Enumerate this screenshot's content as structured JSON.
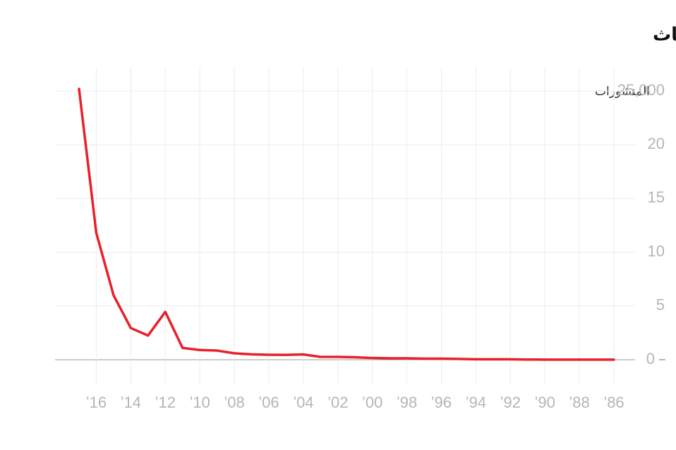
{
  "chart_data": {
    "type": "line",
    "title": "التزايد الكبير في انتشار مصطلح \"التعلم العميق\" في الأبحاث",
    "y_label": "المنشورات",
    "categories": [
      null,
      "’16",
      null,
      "’14",
      null,
      "’12",
      null,
      "’10",
      null,
      "’08",
      null,
      "’06",
      null,
      "’04",
      null,
      "’02",
      null,
      "’00",
      null,
      "’98",
      null,
      "’96",
      null,
      "’94",
      null,
      "’92",
      null,
      "’90",
      null,
      "’88",
      null,
      "’86"
    ],
    "values": [
      25200,
      11800,
      6000,
      2950,
      2250,
      4450,
      1100,
      900,
      850,
      600,
      500,
      460,
      450,
      490,
      260,
      260,
      230,
      160,
      130,
      130,
      100,
      100,
      70,
      40,
      40,
      40,
      20,
      10,
      10,
      10,
      10,
      10
    ],
    "color": "#e8202a",
    "ylim": [
      0,
      25000
    ],
    "yticks": [
      0,
      {
        "value": 5000,
        "label": "5"
      },
      {
        "value": 10000,
        "label": "10"
      },
      {
        "value": 15000,
        "label": "15"
      },
      {
        "value": 20000,
        "label": "20"
      },
      {
        "value": 25000,
        "label": "25,000"
      }
    ],
    "x_reversed": true,
    "grid": true
  }
}
